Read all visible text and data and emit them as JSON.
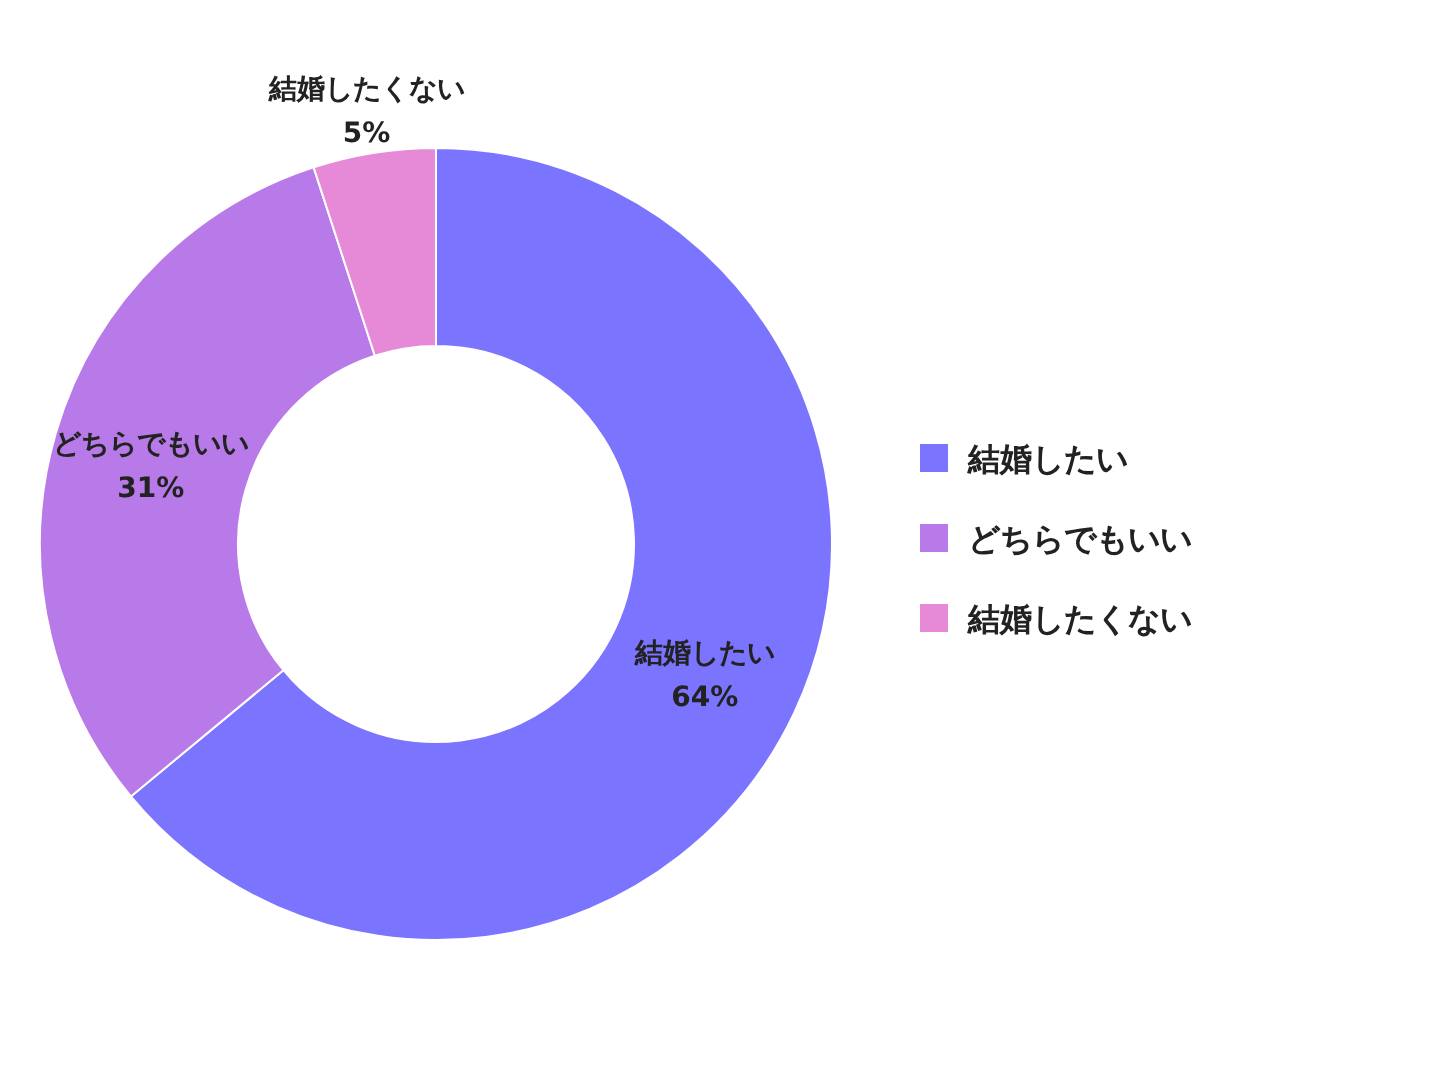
{
  "chart_data": {
    "type": "donut",
    "categories": [
      "結婚したい",
      "どちらでもいい",
      "結婚したくない"
    ],
    "values": [
      64,
      31,
      5
    ],
    "colors": [
      "#7b74ff",
      "#b87ae8",
      "#e68ad8"
    ],
    "value_labels": [
      "64%",
      "31%",
      "5%"
    ],
    "legend": "right"
  }
}
